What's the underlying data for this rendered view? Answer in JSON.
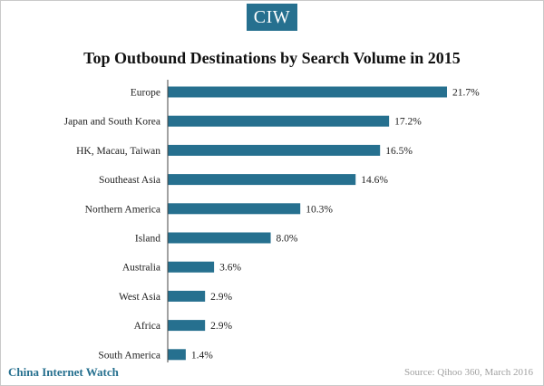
{
  "brand": {
    "logo_text": "CIW",
    "footer_name": "China Internet Watch"
  },
  "source": "Source: Qihoo 360, March 2016",
  "colors": {
    "bar": "#26708f",
    "logo_bg": "#26708f"
  },
  "chart_data": {
    "type": "bar",
    "orientation": "horizontal",
    "title": "Top Outbound Destinations by Search Volume in 2015",
    "categories": [
      "Europe",
      "Japan and South Korea",
      "HK, Macau, Taiwan",
      "Southeast Asia",
      "Northern America",
      "Island",
      "Australia",
      "West Asia",
      "Africa",
      "South America"
    ],
    "values": [
      21.7,
      17.2,
      16.5,
      14.6,
      10.3,
      8.0,
      3.6,
      2.9,
      2.9,
      1.4
    ],
    "value_labels": [
      "21.7%",
      "17.2%",
      "16.5%",
      "14.6%",
      "10.3%",
      "8.0%",
      "3.6%",
      "2.9%",
      "2.9%",
      "1.4%"
    ],
    "value_format": "percent",
    "xlabel": "",
    "ylabel": "",
    "grid": false,
    "legend": "none"
  }
}
